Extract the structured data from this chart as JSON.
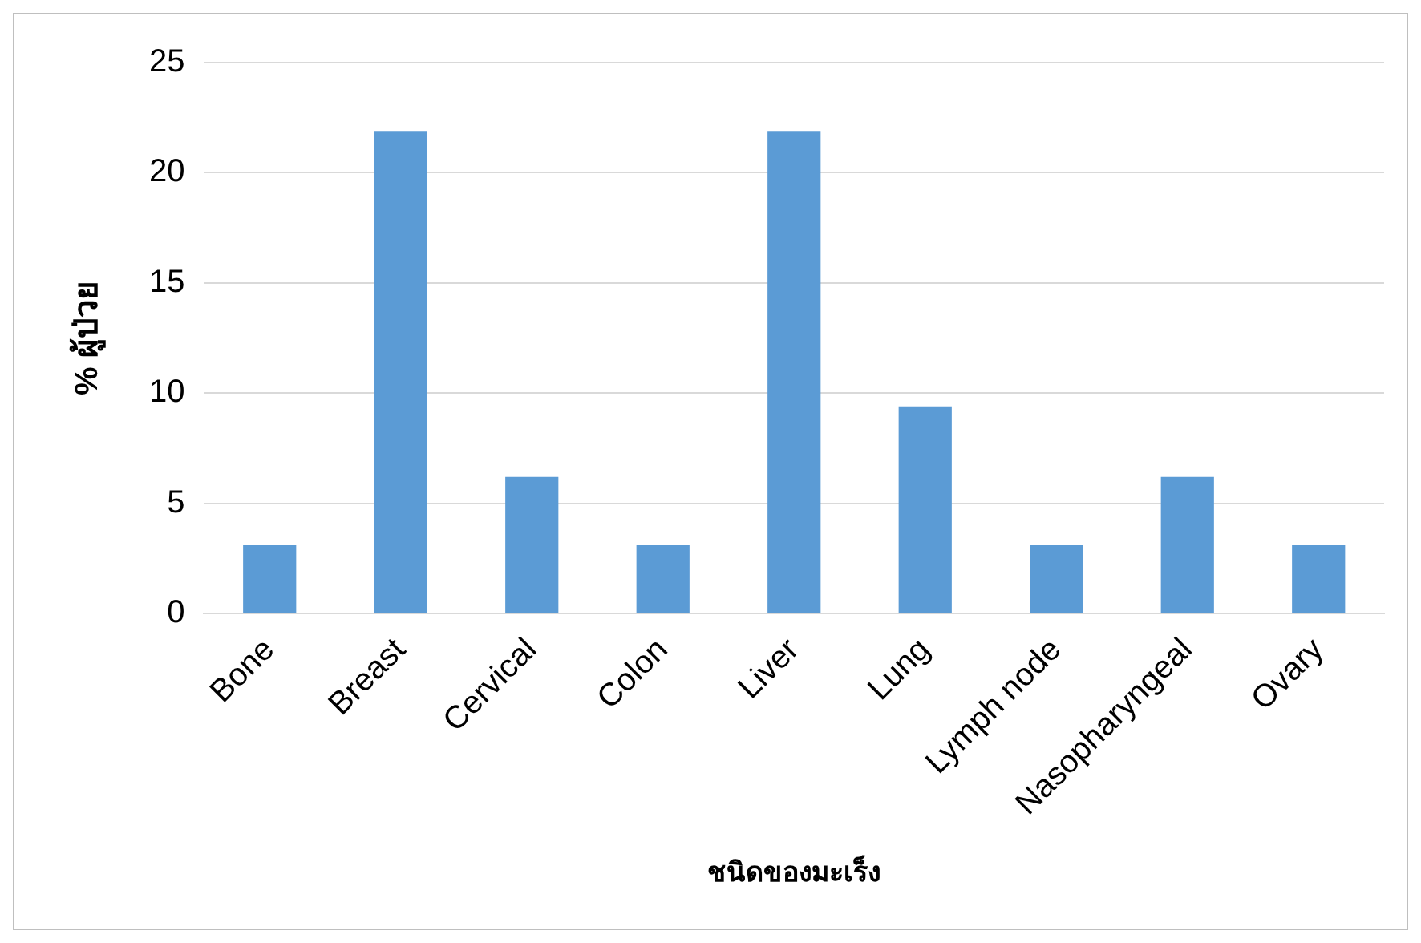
{
  "chart_data": {
    "type": "bar",
    "xlabel": "ชนิดของมะเร็ง",
    "ylabel": "% ผู้ป่วย",
    "categories": [
      "Bone",
      "Breast",
      "Cervical",
      "Colon",
      "Liver",
      "Lung",
      "Lymph node",
      "Nasopharyngeal",
      "Ovary"
    ],
    "values": [
      3.1,
      21.9,
      6.2,
      3.1,
      21.9,
      9.4,
      3.1,
      6.2,
      3.1
    ],
    "color": "#5b9bd5",
    "ylim": [
      0,
      25
    ],
    "yticks": [
      0,
      5,
      10,
      15,
      20,
      25
    ],
    "grid": "y",
    "legend": false
  }
}
